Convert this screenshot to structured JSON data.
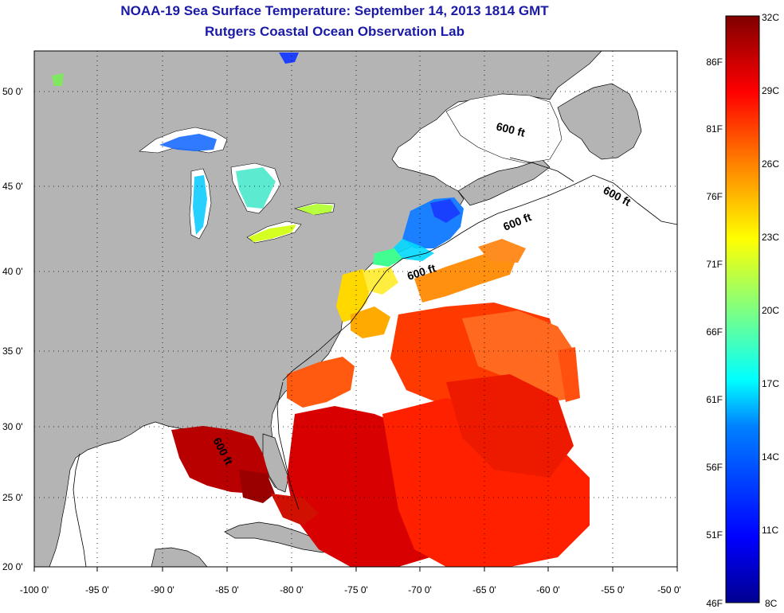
{
  "title": "NOAA-19 Sea Surface Temperature:  September 14, 2013 1814 GMT",
  "subtitle": "Rutgers Coastal Ocean Observation Lab",
  "map": {
    "lon_range": [
      -100,
      -50
    ],
    "lat_range": [
      20,
      52.5
    ],
    "x_ticks": [
      "-100 0'",
      "-95 0'",
      "-90 0'",
      "-85 0'",
      "-80 0'",
      "-75 0'",
      "-70 0'",
      "-65 0'",
      "-60 0'",
      "-55 0'",
      "-50 0'"
    ],
    "y_ticks": [
      "50 0'",
      "45 0'",
      "40 0'",
      "35 0'",
      "30 0'",
      "25 0'",
      "20 0'"
    ],
    "land_color": "#b4b4b4",
    "no_data_color": "#ffffff",
    "contour_labels": [
      "600 ft",
      "600 ft",
      "600 ft",
      "600 ft",
      "600 ft"
    ]
  },
  "colorbar": {
    "celsius_labels": [
      "32C",
      "29C",
      "26C",
      "23C",
      "20C",
      "17C",
      "14C",
      "11C",
      "8C"
    ],
    "fahrenheit_labels": [
      "86F",
      "81F",
      "76F",
      "71F",
      "66F",
      "61F",
      "56F",
      "51F",
      "46F"
    ],
    "colors": [
      "#00008f",
      "#0000ff",
      "#0080ff",
      "#00ffff",
      "#80ff80",
      "#ffff00",
      "#ff8000",
      "#ff0000",
      "#800000"
    ]
  }
}
